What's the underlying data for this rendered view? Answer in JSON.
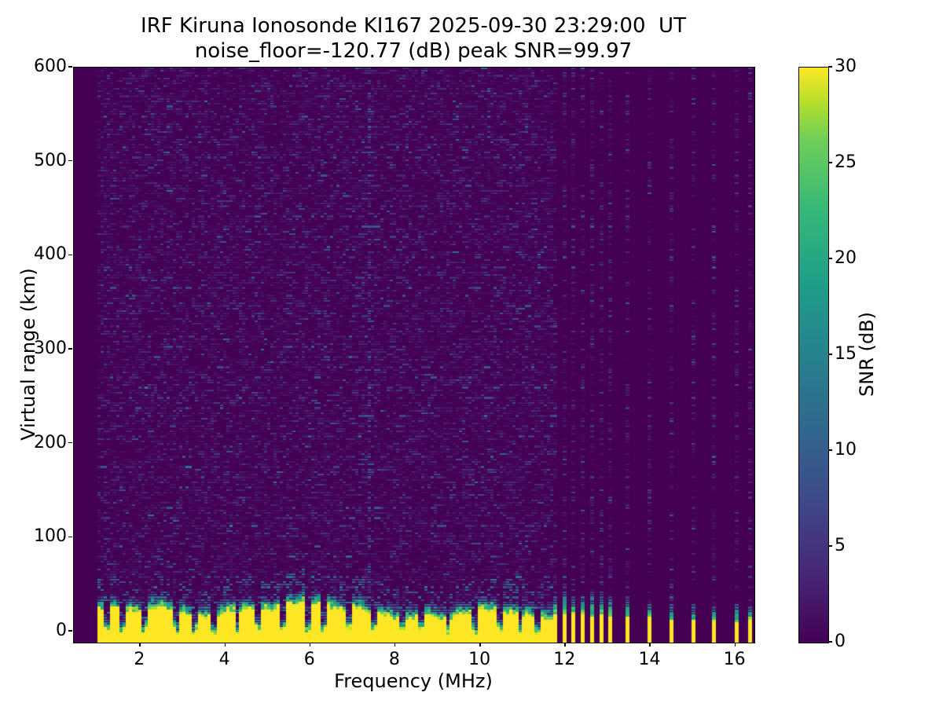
{
  "chart_data": {
    "type": "heatmap",
    "title": "IRF Kiruna Ionosonde KI167 2025-09-30 23:29:00  UT",
    "subtitle": "noise_floor=-120.77 (dB) peak SNR=99.97",
    "xlabel": "Frequency (MHz)",
    "ylabel": "Virtual range (km)",
    "colorbar_label": "SNR (dB)",
    "colormap": "viridis",
    "noise_floor_db": -120.77,
    "peak_snr_db": 99.97,
    "xlim": [
      0.44,
      16.45
    ],
    "ylim": [
      -11.6,
      600
    ],
    "clim": [
      0,
      30
    ],
    "x_ticks": [
      2,
      4,
      6,
      8,
      10,
      12,
      14,
      16
    ],
    "y_ticks": [
      0,
      100,
      200,
      300,
      400,
      500,
      600
    ],
    "colorbar_ticks": [
      0,
      5,
      10,
      15,
      20,
      25,
      30
    ],
    "sweep": {
      "start_mhz": 1.0,
      "continuous_end_mhz": 11.66,
      "column_step_mhz": 0.0739,
      "row_step_km": 2.72
    },
    "ground_echo": {
      "solid_snr_db": 30,
      "mean_top_km": 32,
      "top_km_range": [
        24,
        46
      ],
      "fringe_depth_km": 16,
      "notch_freqs_mhz": [
        1.16,
        1.55,
        2.1,
        2.8,
        3.25,
        3.67,
        4.25,
        4.7,
        5.35,
        5.9,
        6.3,
        6.9,
        7.45,
        8.1,
        8.55,
        9.2,
        9.8,
        10.4,
        10.9,
        11.3
      ]
    },
    "discrete_stripe_freqs_mhz": [
      11.75,
      11.97,
      12.18,
      12.4,
      12.62,
      12.84,
      13.05,
      13.45,
      13.97,
      14.49,
      15.0,
      15.48,
      16.02,
      16.33
    ],
    "interference_line_mhz": 7.37,
    "noise": {
      "background_snr_db_max": 9,
      "speckle_density": 0.55
    },
    "viridis_stops": [
      [
        0,
        "#440154"
      ],
      [
        0.125,
        "#482878"
      ],
      [
        0.25,
        "#3e4a89"
      ],
      [
        0.375,
        "#31688e"
      ],
      [
        0.5,
        "#26828e"
      ],
      [
        0.625,
        "#1f9e89"
      ],
      [
        0.75,
        "#35b779"
      ],
      [
        0.875,
        "#6ece58"
      ],
      [
        0.94,
        "#b5de2b"
      ],
      [
        1,
        "#fde725"
      ]
    ],
    "seed": 167
  }
}
